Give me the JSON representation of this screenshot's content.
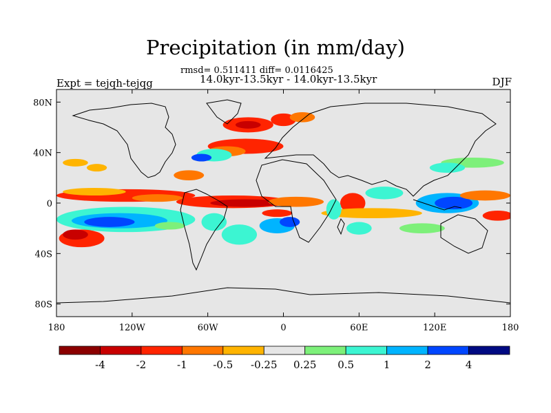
{
  "chart_data": {
    "type": "heatmap",
    "title": "Precipitation (in mm/day)",
    "stats": "rmsd= 0.511411 diff= 0.0116425",
    "subtitle": "14.0kyr-13.5kyr - 14.0kyr-13.5kyr",
    "experiment": "Expt = tejqh-tejqg",
    "season": "DJF",
    "x_axis": {
      "range": [
        -180,
        180
      ],
      "ticks": [
        {
          "value": -180,
          "label": "180"
        },
        {
          "value": -120,
          "label": "120W"
        },
        {
          "value": -60,
          "label": "60W"
        },
        {
          "value": 0,
          "label": "0"
        },
        {
          "value": 60,
          "label": "60E"
        },
        {
          "value": 120,
          "label": "120E"
        },
        {
          "value": 180,
          "label": "180"
        }
      ]
    },
    "y_axis": {
      "range": [
        -90,
        90
      ],
      "ticks": [
        {
          "value": 80,
          "label": "80N"
        },
        {
          "value": 40,
          "label": "40N"
        },
        {
          "value": 0,
          "label": "0"
        },
        {
          "value": -40,
          "label": "40S"
        },
        {
          "value": -80,
          "label": "80S"
        }
      ]
    },
    "colorbar": {
      "colors": [
        "#8b0000",
        "#c80000",
        "#ff2400",
        "#ff7700",
        "#ffb400",
        "#e6e6e6",
        "#7df07a",
        "#3cf5d2",
        "#00b4ff",
        "#0046ff",
        "#000a82"
      ],
      "labels": [
        "-4",
        "-2",
        "-1",
        "-0.5",
        "-0.25",
        "0.25",
        "0.5",
        "1",
        "2",
        "4"
      ]
    },
    "background_color": "#e6e6e6",
    "anomaly_regions": [
      {
        "lon": -125,
        "lat": 6,
        "rx": 55,
        "ry": 5,
        "level": 2
      },
      {
        "lon": -100,
        "lat": 4,
        "rx": 20,
        "ry": 3,
        "level": 3
      },
      {
        "lon": -150,
        "lat": 9,
        "rx": 25,
        "ry": 3,
        "level": 4
      },
      {
        "lon": -125,
        "lat": -13,
        "rx": 55,
        "ry": 10,
        "level": 7
      },
      {
        "lon": -130,
        "lat": -14,
        "rx": 38,
        "ry": 6,
        "level": 8
      },
      {
        "lon": -138,
        "lat": -15,
        "rx": 20,
        "ry": 4,
        "level": 9
      },
      {
        "lon": -160,
        "lat": -28,
        "rx": 18,
        "ry": 7,
        "level": 2
      },
      {
        "lon": -165,
        "lat": -25,
        "rx": 10,
        "ry": 4,
        "level": 1
      },
      {
        "lon": -40,
        "lat": 1,
        "rx": 45,
        "ry": 5,
        "level": 2
      },
      {
        "lon": -30,
        "lat": 0,
        "rx": 28,
        "ry": 3,
        "level": 1
      },
      {
        "lon": 10,
        "lat": 1,
        "rx": 22,
        "ry": 4,
        "level": 3
      },
      {
        "lon": -55,
        "lat": -15,
        "rx": 10,
        "ry": 7,
        "level": 7
      },
      {
        "lon": -35,
        "lat": -25,
        "rx": 14,
        "ry": 8,
        "level": 7
      },
      {
        "lon": -5,
        "lat": -18,
        "rx": 14,
        "ry": 6,
        "level": 8
      },
      {
        "lon": 5,
        "lat": -15,
        "rx": 8,
        "ry": 4,
        "level": 9
      },
      {
        "lon": -5,
        "lat": -8,
        "rx": 12,
        "ry": 3,
        "level": 2
      },
      {
        "lon": -28,
        "lat": 62,
        "rx": 20,
        "ry": 6,
        "level": 2
      },
      {
        "lon": -28,
        "lat": 62,
        "rx": 10,
        "ry": 3,
        "level": 1
      },
      {
        "lon": 0,
        "lat": 66,
        "rx": 10,
        "ry": 5,
        "level": 2
      },
      {
        "lon": 15,
        "lat": 68,
        "rx": 10,
        "ry": 4,
        "level": 3
      },
      {
        "lon": -30,
        "lat": 45,
        "rx": 30,
        "ry": 6,
        "level": 2
      },
      {
        "lon": -45,
        "lat": 41,
        "rx": 15,
        "ry": 4,
        "level": 3
      },
      {
        "lon": -55,
        "lat": 38,
        "rx": 14,
        "ry": 5,
        "level": 7
      },
      {
        "lon": -65,
        "lat": 36,
        "rx": 8,
        "ry": 3,
        "level": 9
      },
      {
        "lon": -75,
        "lat": 22,
        "rx": 12,
        "ry": 4,
        "level": 3
      },
      {
        "lon": 55,
        "lat": 0,
        "rx": 10,
        "ry": 8,
        "level": 2
      },
      {
        "lon": 70,
        "lat": -8,
        "rx": 40,
        "ry": 4,
        "level": 4
      },
      {
        "lon": 60,
        "lat": -20,
        "rx": 10,
        "ry": 5,
        "level": 7
      },
      {
        "lon": 80,
        "lat": 8,
        "rx": 15,
        "ry": 5,
        "level": 7
      },
      {
        "lon": 130,
        "lat": 0,
        "rx": 25,
        "ry": 8,
        "level": 8
      },
      {
        "lon": 135,
        "lat": 0,
        "rx": 15,
        "ry": 5,
        "level": 9
      },
      {
        "lon": 160,
        "lat": 6,
        "rx": 20,
        "ry": 4,
        "level": 3
      },
      {
        "lon": 170,
        "lat": -10,
        "rx": 12,
        "ry": 4,
        "level": 2
      },
      {
        "lon": 150,
        "lat": 32,
        "rx": 25,
        "ry": 4,
        "level": 6
      },
      {
        "lon": 130,
        "lat": 28,
        "rx": 14,
        "ry": 4,
        "level": 7
      },
      {
        "lon": -165,
        "lat": 32,
        "rx": 10,
        "ry": 3,
        "level": 4
      },
      {
        "lon": -148,
        "lat": 28,
        "rx": 8,
        "ry": 3,
        "level": 4
      },
      {
        "lon": -90,
        "lat": -18,
        "rx": 12,
        "ry": 3,
        "level": 6
      },
      {
        "lon": 110,
        "lat": -20,
        "rx": 18,
        "ry": 4,
        "level": 6
      },
      {
        "lon": 40,
        "lat": -5,
        "rx": 6,
        "ry": 8,
        "level": 7
      }
    ]
  }
}
